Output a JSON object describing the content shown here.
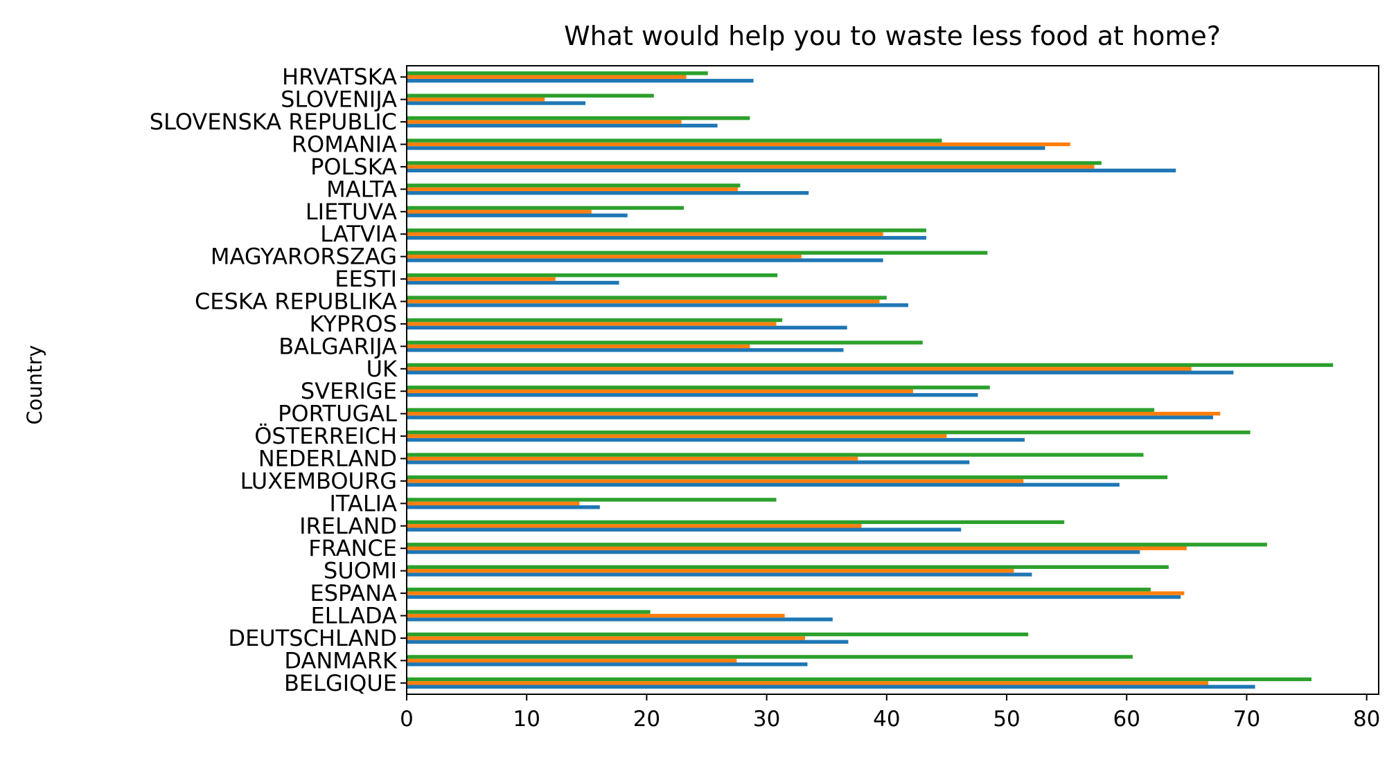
{
  "chart_data": {
    "type": "bar",
    "orientation": "horizontal",
    "title": "What would help you to waste less food at home?",
    "xlabel": "",
    "ylabel": "Country",
    "xlim": [
      0,
      81
    ],
    "xticks": [
      0,
      10,
      20,
      30,
      40,
      50,
      60,
      70,
      80
    ],
    "grid": false,
    "legend": "none",
    "categories": [
      "BELGIQUE",
      "DANMARK",
      "DEUTSCHLAND",
      "ELLADA",
      "ESPANA",
      "SUOMI",
      "FRANCE",
      "IRELAND",
      "ITALIA",
      "LUXEMBOURG",
      "NEDERLAND",
      "ÖSTERREICH",
      "PORTUGAL",
      "SVERIGE",
      "UK",
      "BALGARIJA",
      "KYPROS",
      "CESKA REPUBLIKA",
      "EESTI",
      "MAGYARORSZAG",
      "LATVIA",
      "LIETUVA",
      "MALTA",
      "POLSKA",
      "ROMANIA",
      "SLOVENSKA REPUBLIC",
      "SLOVENIJA",
      "HRVATSKA"
    ],
    "series": [
      {
        "color": "#1f77b4",
        "values": [
          70.7,
          33.4,
          36.8,
          35.5,
          64.5,
          52.1,
          61.1,
          46.2,
          16.1,
          59.4,
          46.9,
          51.5,
          67.2,
          47.6,
          68.9,
          36.4,
          36.7,
          41.8,
          17.7,
          39.7,
          43.3,
          18.4,
          33.5,
          64.1,
          53.2,
          25.9,
          14.9,
          28.9
        ]
      },
      {
        "color": "#ff7f0e",
        "values": [
          66.8,
          27.5,
          33.2,
          31.5,
          64.8,
          50.6,
          65.0,
          37.9,
          14.4,
          51.4,
          37.6,
          45.0,
          67.8,
          42.2,
          65.4,
          28.6,
          30.8,
          39.4,
          12.4,
          32.9,
          39.7,
          15.4,
          27.6,
          57.3,
          55.3,
          22.9,
          11.5,
          23.3
        ]
      },
      {
        "color": "#2ca02c",
        "values": [
          75.4,
          60.5,
          51.8,
          20.3,
          62.0,
          63.5,
          71.7,
          54.8,
          30.8,
          63.4,
          61.4,
          70.3,
          62.3,
          48.6,
          77.2,
          43.0,
          31.3,
          40.0,
          30.9,
          48.4,
          43.3,
          23.1,
          27.8,
          57.9,
          44.6,
          28.6,
          20.6,
          25.1
        ]
      }
    ]
  }
}
